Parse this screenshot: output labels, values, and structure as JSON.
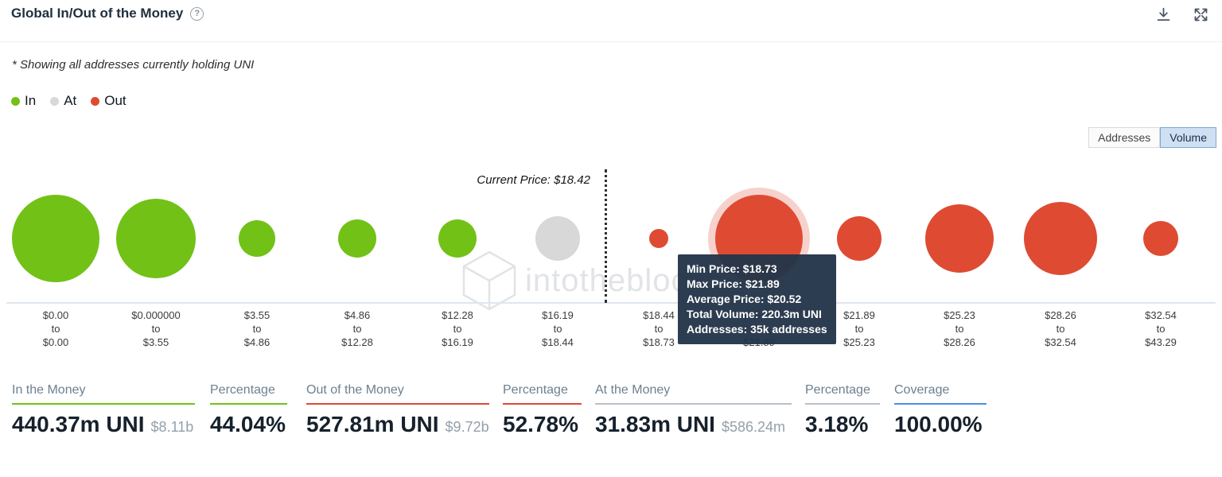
{
  "header": {
    "title": "Global In/Out of the Money"
  },
  "subtitle": "* Showing all addresses currently holding UNI",
  "legend": [
    {
      "label": "In",
      "key": "in"
    },
    {
      "label": "At",
      "key": "at"
    },
    {
      "label": "Out",
      "key": "out"
    }
  ],
  "view_toggle": [
    {
      "label": "Addresses",
      "selected": false
    },
    {
      "label": "Volume",
      "selected": true
    }
  ],
  "colors": {
    "in": "#72c117",
    "at": "#d8d8d8",
    "out": "#de4b32",
    "at_muted": "#b8bfc7",
    "coverage": "#4a90e2"
  },
  "chart_data": {
    "type": "bubble",
    "title": "Global In/Out of the Money",
    "asset": "UNI",
    "mode": "Volume",
    "current_price": 18.42,
    "current_price_label": "Current Price: $18.42",
    "watermark": "intotheblock",
    "x_axis": "price ranges (USD)",
    "buckets": [
      {
        "min": "$0.00",
        "max": "$0.00",
        "status": "in",
        "radius": 55
      },
      {
        "min": "$0.000000",
        "max": "$3.55",
        "status": "in",
        "radius": 50
      },
      {
        "min": "$3.55",
        "max": "$4.86",
        "status": "in",
        "radius": 23
      },
      {
        "min": "$4.86",
        "max": "$12.28",
        "status": "in",
        "radius": 24
      },
      {
        "min": "$12.28",
        "max": "$16.19",
        "status": "in",
        "radius": 24
      },
      {
        "min": "$16.19",
        "max": "$18.44",
        "status": "at",
        "radius": 28
      },
      {
        "min": "$18.44",
        "max": "$18.73",
        "status": "out",
        "radius": 12
      },
      {
        "min": "$18.73",
        "max": "$21.89",
        "status": "out",
        "radius": 55,
        "highlighted": true
      },
      {
        "min": "$21.89",
        "max": "$25.23",
        "status": "out",
        "radius": 28
      },
      {
        "min": "$25.23",
        "max": "$28.26",
        "status": "out",
        "radius": 43
      },
      {
        "min": "$28.26",
        "max": "$32.54",
        "status": "out",
        "radius": 46
      },
      {
        "min": "$32.54",
        "max": "$43.29",
        "status": "out",
        "radius": 22
      }
    ],
    "tooltip": {
      "lines": [
        "Min Price: $18.73",
        "Max Price: $21.89",
        "Average Price: $20.52",
        "Total Volume: 220.3m UNI",
        "Addresses: 35k addresses"
      ]
    }
  },
  "stats": [
    {
      "label": "In the Money",
      "value": "440.37m UNI",
      "sub": "$8.11b",
      "accent": "in"
    },
    {
      "label": "Percentage",
      "value": "44.04%",
      "sub": "",
      "accent": "in"
    },
    {
      "label": "Out of the Money",
      "value": "527.81m UNI",
      "sub": "$9.72b",
      "accent": "out"
    },
    {
      "label": "Percentage",
      "value": "52.78%",
      "sub": "",
      "accent": "out"
    },
    {
      "label": "At the Money",
      "value": "31.83m UNI",
      "sub": "$586.24m",
      "accent": "at_muted"
    },
    {
      "label": "Percentage",
      "value": "3.18%",
      "sub": "",
      "accent": "at_muted"
    },
    {
      "label": "Coverage",
      "value": "100.00%",
      "sub": "",
      "accent": "coverage"
    }
  ]
}
